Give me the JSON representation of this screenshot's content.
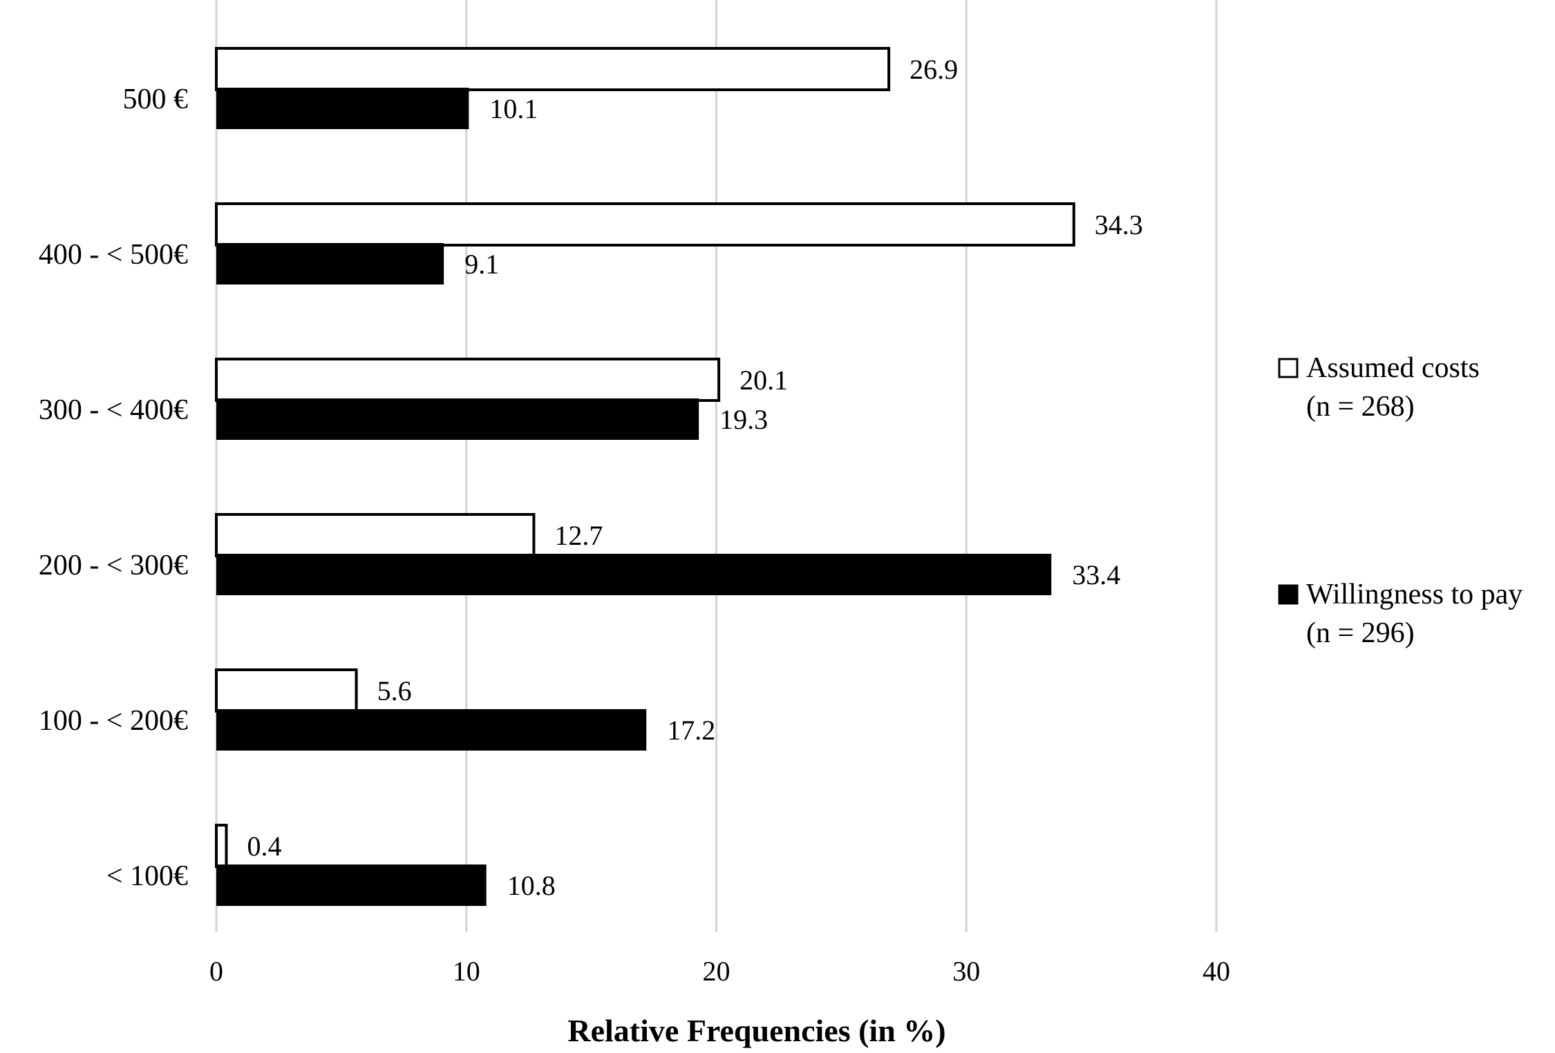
{
  "chart_data": {
    "type": "bar",
    "orientation": "horizontal",
    "title": "",
    "xlabel": "Relative Frequencies (in %)",
    "ylabel": "",
    "xlim": [
      0,
      40
    ],
    "xticks": [
      "0",
      "10",
      "20",
      "30",
      "40"
    ],
    "grid": true,
    "categories": [
      "500 €",
      "400 - < 500€",
      "300 - < 400€",
      "200 - < 300€",
      "100 - < 200€",
      "< 100€"
    ],
    "series": [
      {
        "name": "Assumed costs",
        "legend_lines": [
          "Assumed costs",
          "(n = 268)"
        ],
        "fill": "#ffffff",
        "stroke": "#000000",
        "values": [
          26.9,
          34.3,
          20.1,
          12.7,
          5.6,
          0.4
        ],
        "labels": [
          "26.9",
          "34.3",
          "20.1",
          "12.7",
          "5.6",
          "0.4"
        ]
      },
      {
        "name": "Willingness to pay",
        "legend_lines": [
          "Willingness to pay",
          "(n = 296)"
        ],
        "fill": "#000000",
        "stroke": "#000000",
        "values": [
          10.1,
          9.1,
          19.3,
          33.4,
          17.2,
          10.8
        ],
        "labels": [
          "10.1",
          "9.1",
          "19.3",
          "33.4",
          "17.2",
          "10.8"
        ]
      }
    ],
    "legend_position": "right"
  }
}
